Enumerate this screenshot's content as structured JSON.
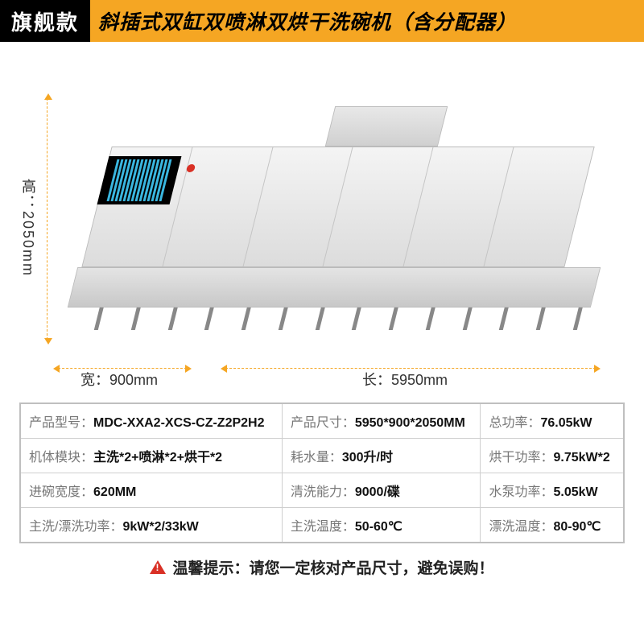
{
  "header": {
    "badge": "旗舰款",
    "title": "斜插式双缸双喷淋双烘干洗碗机（含分配器）"
  },
  "dimensions": {
    "height_label": "高：2050mm",
    "width_label": "宽：900mm",
    "length_label": "长：5950mm"
  },
  "spec_rows": [
    [
      {
        "label": "产品型号：",
        "value": "MDC-XXA2-XCS-CZ-Z2P2H2"
      },
      {
        "label": "产品尺寸：",
        "value": "5950*900*2050MM"
      },
      {
        "label": "总功率：",
        "value": "76.05kW"
      }
    ],
    [
      {
        "label": "机体模块：",
        "value": "主洗*2+喷淋*2+烘干*2"
      },
      {
        "label": "耗水量：",
        "value": "300升/时"
      },
      {
        "label": "烘干功率：",
        "value": "9.75kW*2"
      }
    ],
    [
      {
        "label": "进碗宽度：",
        "value": "620MM"
      },
      {
        "label": "清洗能力：",
        "value": "9000/碟"
      },
      {
        "label": "水泵功率：",
        "value": "5.05kW"
      }
    ],
    [
      {
        "label": "主洗/漂洗功率：",
        "value": "9kW*2/33kW"
      },
      {
        "label": "主洗温度：",
        "value": "50-60℃"
      },
      {
        "label": "漂洗温度：",
        "value": "80-90℃"
      }
    ]
  ],
  "notice": "温馨提示：请您一定核对产品尺寸，避免误购！",
  "colors": {
    "accent": "#f5a623",
    "badge_bg": "#000000",
    "warn": "#d93025",
    "border": "#bfbfbf"
  }
}
